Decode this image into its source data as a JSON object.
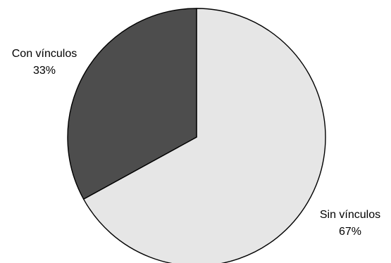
{
  "chart_data": {
    "type": "pie",
    "title": "",
    "start_angle_deg": 0,
    "direction": "clockwise",
    "slices": [
      {
        "label": "Sin vínculos",
        "value": 67,
        "value_label": "67%",
        "color": "#e6e6e6"
      },
      {
        "label": "Con vínculos",
        "value": 33,
        "value_label": "33%",
        "color": "#4d4d4d"
      }
    ],
    "legend": "none"
  }
}
